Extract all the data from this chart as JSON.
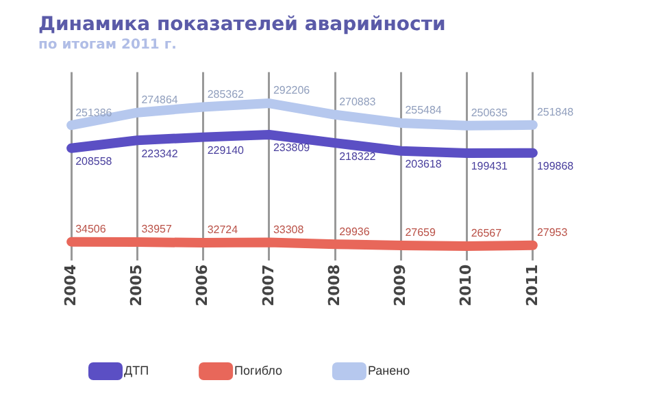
{
  "chart_data": {
    "type": "line",
    "title": "Динамика показателей аварийности",
    "subtitle": "по итогам 2011 г.",
    "categories": [
      "2004",
      "2005",
      "2006",
      "2007",
      "2008",
      "2009",
      "2010",
      "2011"
    ],
    "series": [
      {
        "name": "ДТП",
        "color": "#5b4fc4",
        "values": [
          208558,
          223342,
          229140,
          233809,
          218322,
          203618,
          199431,
          199868
        ]
      },
      {
        "name": "Погибло",
        "color": "#e8675a",
        "values": [
          34506,
          33957,
          32724,
          33308,
          29936,
          27659,
          26567,
          27953
        ]
      },
      {
        "name": "Ранено",
        "color": "#b6c8ee",
        "values": [
          251386,
          274864,
          285362,
          292206,
          270883,
          255484,
          250635,
          251848
        ]
      }
    ],
    "data_labels": true,
    "grid": "x",
    "legend": "bottom",
    "tick_labels": "x",
    "marker": "none",
    "line_style": "solid"
  }
}
